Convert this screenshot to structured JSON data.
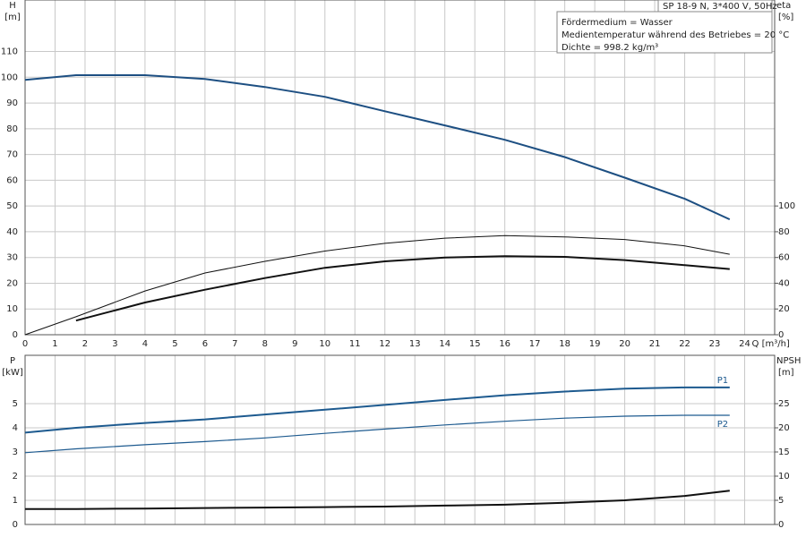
{
  "chart_data": [
    {
      "type": "line",
      "title": "SP 18-9 N, 3*400 V, 50Hz",
      "annotations": [
        "Fördermedium = Wasser",
        "Medientemperatur während des Betriebes = 20 °C",
        "Dichte = 998.2 kg/m³"
      ],
      "ylabel": "H",
      "ylabel_unit": "[m]",
      "y2label": "eta",
      "y2label_unit": "[%]",
      "xlabel": "Q [m³/h]",
      "x": [
        0,
        1.7,
        4,
        6,
        8,
        10,
        12,
        14,
        16,
        18,
        20,
        22,
        23.5
      ],
      "xlim": [
        0,
        25
      ],
      "xticks": [
        0,
        1,
        2,
        3,
        4,
        5,
        6,
        7,
        8,
        9,
        10,
        11,
        12,
        13,
        14,
        15,
        16,
        17,
        18,
        19,
        20,
        21,
        22,
        23,
        24
      ],
      "ylim": [
        0,
        130
      ],
      "yticks": [
        0,
        10,
        20,
        30,
        40,
        50,
        60,
        70,
        80,
        90,
        100,
        110
      ],
      "y2lim": [
        0,
        260
      ],
      "y2ticks": [
        0,
        20,
        40,
        60,
        80,
        100
      ],
      "grid": true,
      "series": [
        {
          "color": "#1d4f82",
          "width": 2,
          "values": [
            99,
            100.8,
            100.8,
            99.3,
            96.2,
            92.4,
            86.8,
            81.3,
            75.7,
            69,
            61,
            52.8,
            44.8
          ]
        },
        {
          "color": "#111111",
          "width": 1,
          "axis": "y2",
          "values": [
            0,
            14,
            34,
            48,
            57,
            65,
            71,
            75,
            77,
            76,
            74,
            69,
            62.5
          ]
        },
        {
          "color": "#111111",
          "width": 2,
          "axis": "y2",
          "values": [
            null,
            11,
            25,
            35,
            44,
            52,
            57,
            60,
            61,
            60.5,
            58,
            54,
            51
          ]
        }
      ]
    },
    {
      "type": "line",
      "ylabel": "P",
      "ylabel_unit": "[kW]",
      "y2label": "NPSH",
      "y2label_unit": "[m]",
      "x": [
        0,
        1.7,
        4,
        6,
        8,
        10,
        12,
        14,
        16,
        18,
        20,
        22,
        23.5
      ],
      "xlim": [
        0,
        25
      ],
      "xticks": [
        0,
        1,
        2,
        3,
        4,
        5,
        6,
        7,
        8,
        9,
        10,
        11,
        12,
        13,
        14,
        15,
        16,
        17,
        18,
        19,
        20,
        21,
        22,
        23,
        24
      ],
      "ylim": [
        0,
        7
      ],
      "yticks": [
        0,
        1,
        2,
        3,
        4,
        5
      ],
      "y2lim": [
        0,
        35
      ],
      "y2ticks": [
        0,
        5,
        10,
        15,
        20,
        25
      ],
      "grid": true,
      "series": [
        {
          "name": "P1",
          "color": "#1d5a8f",
          "width": 2,
          "values": [
            3.8,
            4.0,
            4.2,
            4.35,
            4.55,
            4.75,
            4.95,
            5.15,
            5.35,
            5.5,
            5.62,
            5.67,
            5.67
          ]
        },
        {
          "name": "P2",
          "color": "#1d5a8f",
          "width": 1.2,
          "values": [
            2.97,
            3.13,
            3.3,
            3.43,
            3.58,
            3.77,
            3.95,
            4.12,
            4.27,
            4.4,
            4.48,
            4.52,
            4.52
          ]
        },
        {
          "color": "#111111",
          "width": 2,
          "axis": "y2",
          "values": [
            3.2,
            3.2,
            3.3,
            3.4,
            3.5,
            3.6,
            3.7,
            3.9,
            4.1,
            4.5,
            5.0,
            5.9,
            7.0
          ]
        }
      ]
    }
  ]
}
